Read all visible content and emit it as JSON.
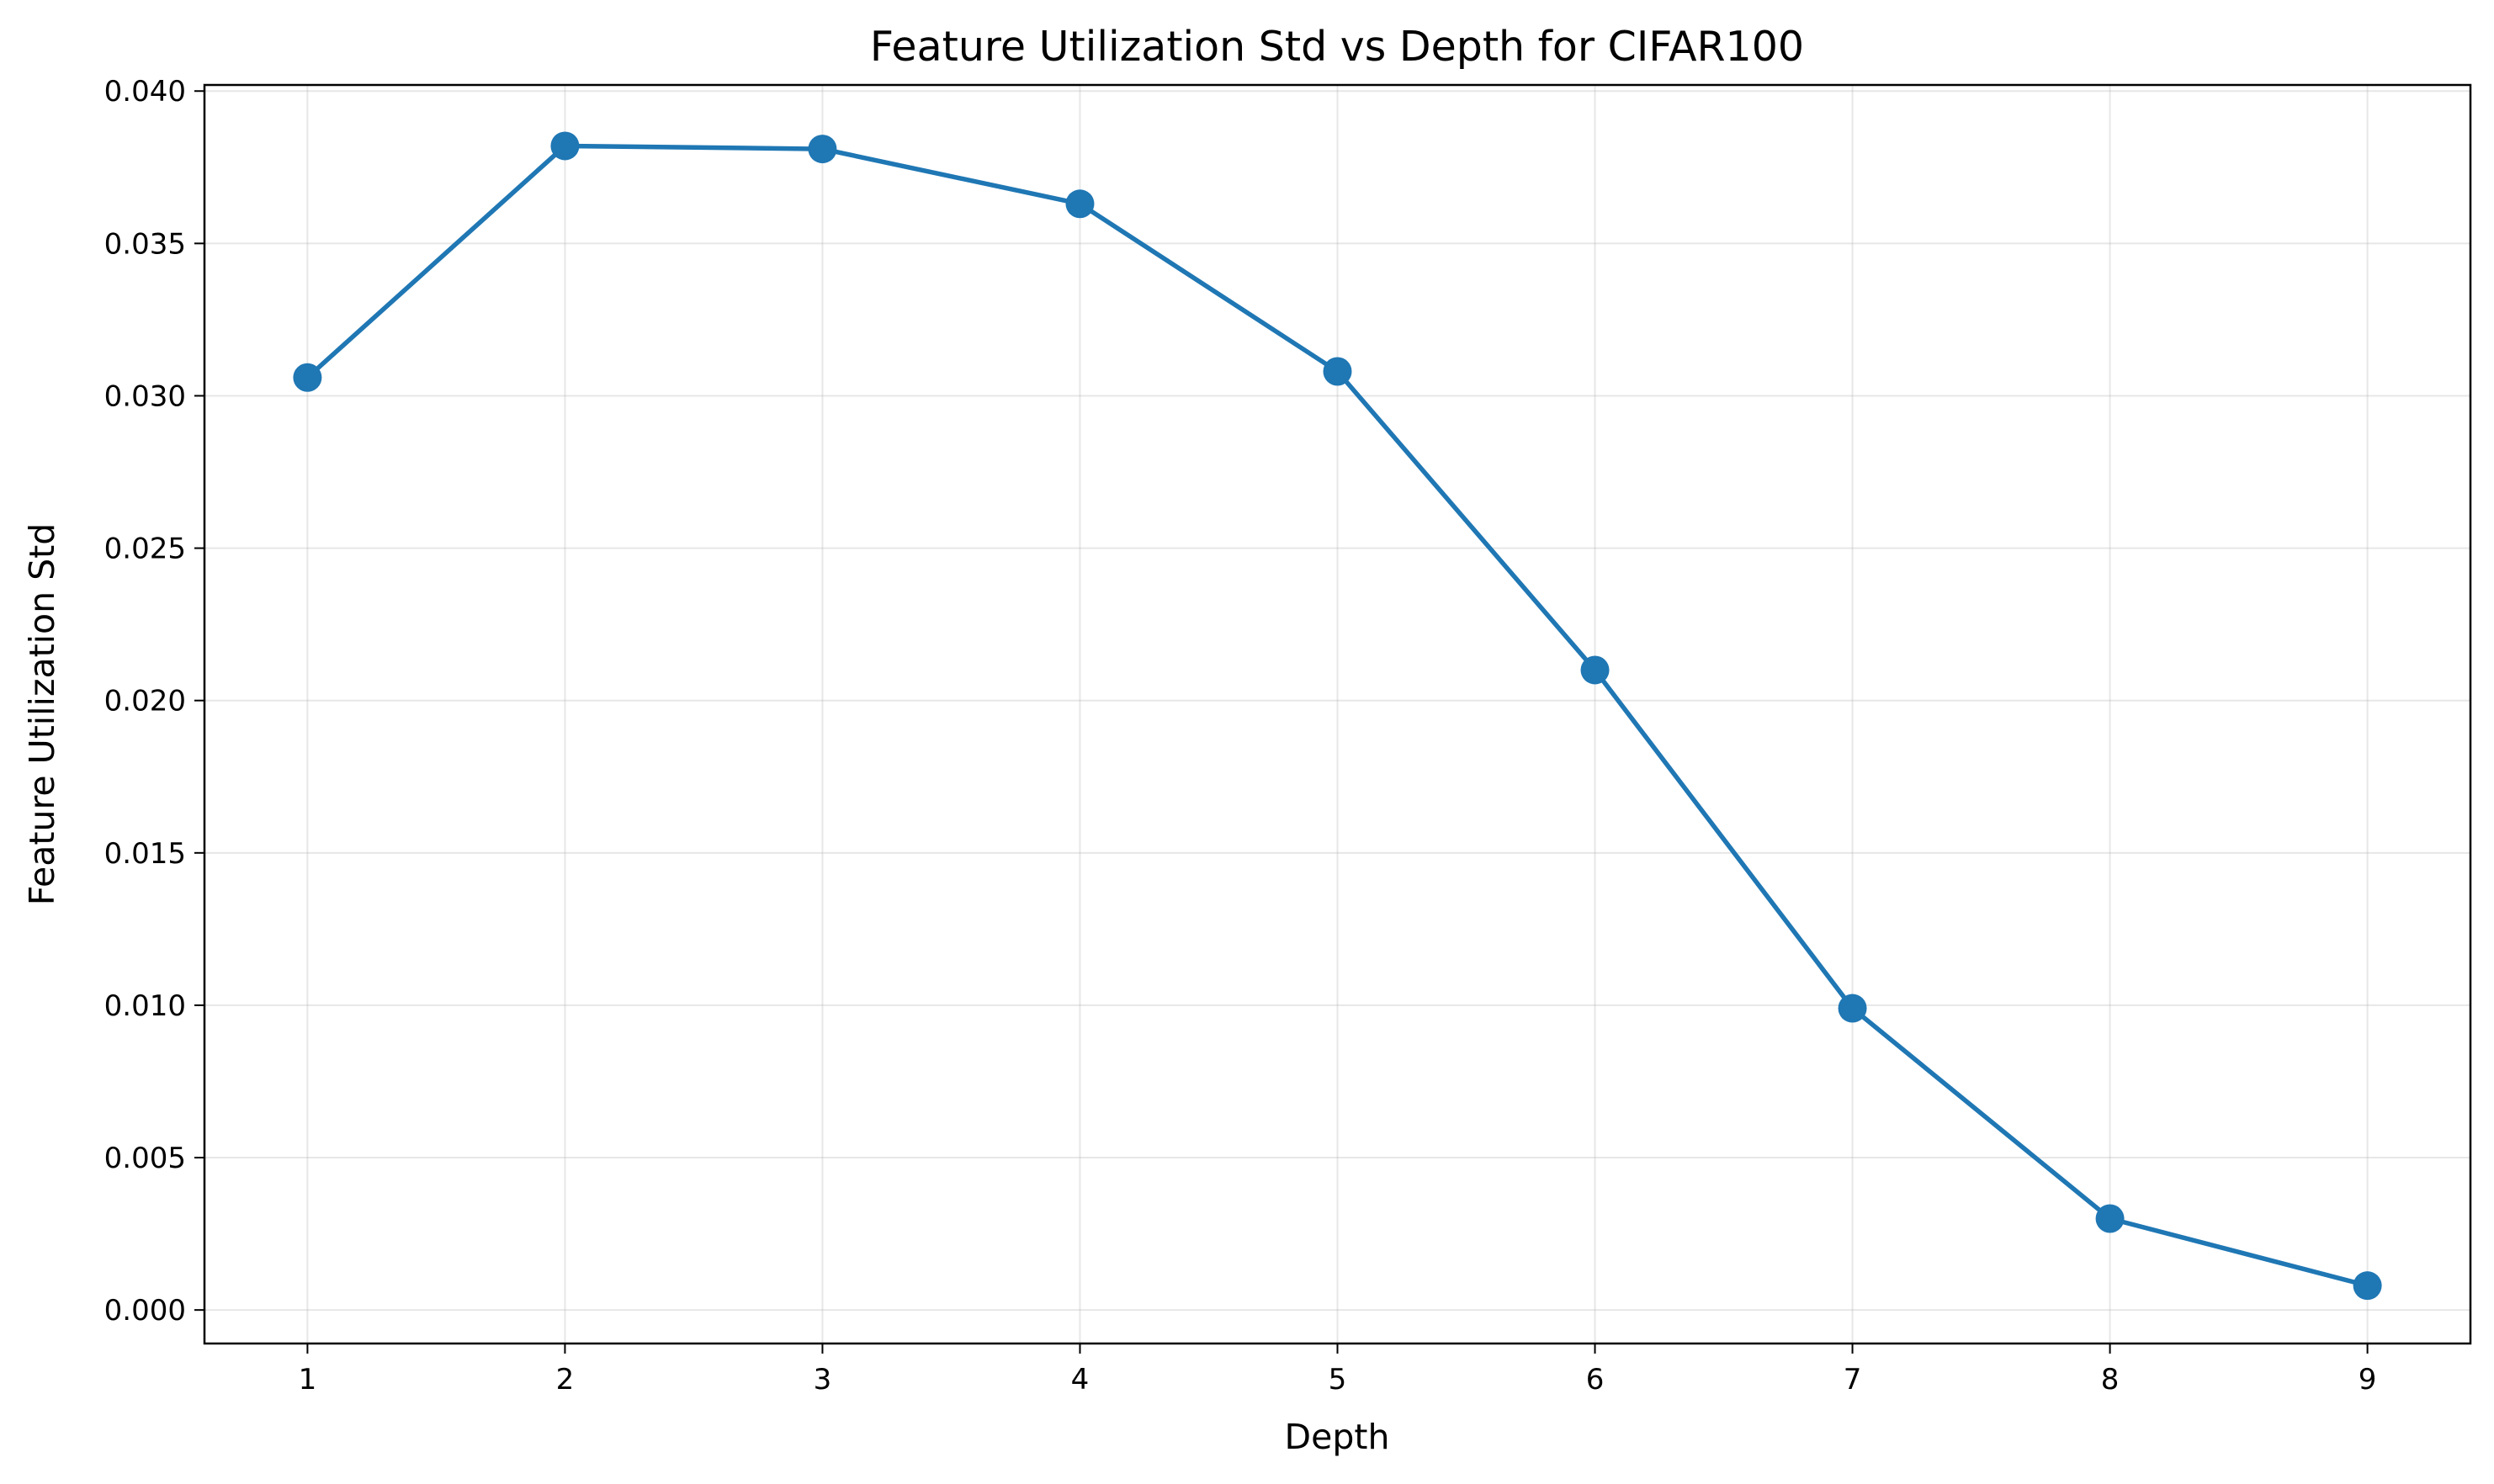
{
  "chart_data": {
    "type": "line",
    "title": "Feature Utilization Std vs Depth for CIFAR100",
    "xlabel": "Depth",
    "ylabel": "Feature Utilization Std",
    "x": [
      1,
      2,
      3,
      4,
      5,
      6,
      7,
      8,
      9
    ],
    "series": [
      {
        "values": [
          0.0306,
          0.0382,
          0.0381,
          0.0363,
          0.0308,
          0.021,
          0.0099,
          0.003,
          0.0008
        ]
      }
    ],
    "xlim": [
      0.6,
      9.4
    ],
    "ylim": [
      -0.0011,
      0.0402
    ],
    "x_ticks": [
      "1",
      "2",
      "3",
      "4",
      "5",
      "6",
      "7",
      "8",
      "9"
    ],
    "y_ticks": [
      "0.000",
      "0.005",
      "0.010",
      "0.015",
      "0.020",
      "0.025",
      "0.030",
      "0.035",
      "0.040"
    ],
    "grid": true,
    "legend": "none",
    "colors": {
      "line": "#1f77b4",
      "marker": "#1f77b4"
    }
  }
}
